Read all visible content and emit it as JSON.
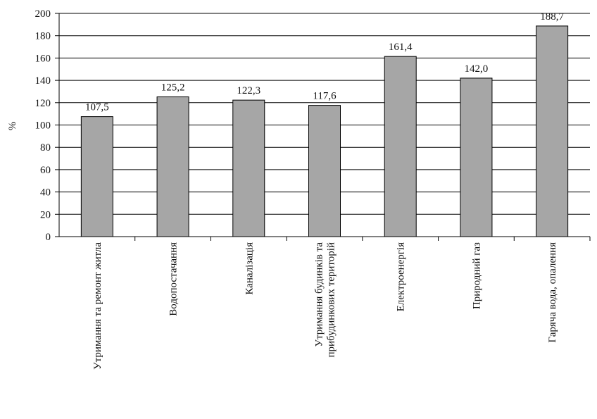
{
  "chart_data": {
    "type": "bar",
    "ylabel": "%",
    "xlabel": "",
    "ylim": [
      0,
      200
    ],
    "y_ticks": [
      "0",
      "20",
      "40",
      "60",
      "80",
      "100",
      "120",
      "140",
      "160",
      "180",
      "200"
    ],
    "grid": true,
    "legend": "none",
    "bar_color": "#a6a6a6",
    "categories": [
      [
        "Утримання та ремонт житла"
      ],
      [
        "Водопостачання"
      ],
      [
        "Каналізація"
      ],
      [
        "Утримання будинків та",
        "прибудинкових територій"
      ],
      [
        "Електроенергія"
      ],
      [
        "Природний газ"
      ],
      [
        "Гаряча вода, опалення"
      ]
    ],
    "values": [
      107.5,
      125.2,
      122.3,
      117.6,
      161.4,
      142.0,
      188.7
    ],
    "value_labels": [
      "107,5",
      "125,2",
      "122,3",
      "117,6",
      "161,4",
      "142,0",
      "188,7"
    ]
  }
}
